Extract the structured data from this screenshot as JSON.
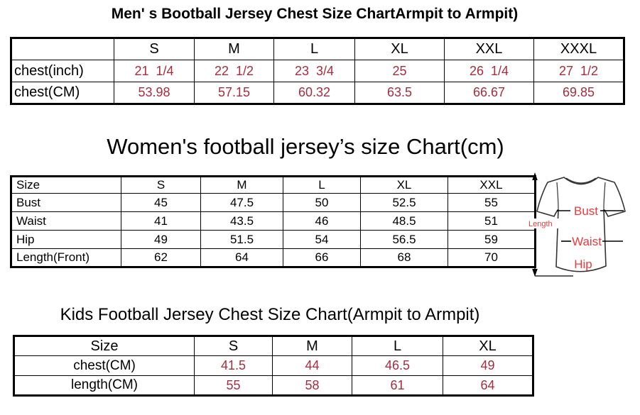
{
  "colors": {
    "table_value_red": "#A82C3E",
    "diagram_label_red": "#ED3A3A",
    "table_border": "#000000",
    "background": "#FFFFFF"
  },
  "men_chart": {
    "title": "Men' s Bootball Jersey Chest Size ChartArmpit to Armpit)",
    "columns": [
      "",
      "S",
      "M",
      "L",
      "XL",
      "XXL",
      "XXXL"
    ],
    "value_color": "#A82C3E",
    "rows": [
      {
        "label": "chest(inch)",
        "values": [
          "21  1/4",
          "22  1/2",
          "23  3/4",
          "25",
          "26  1/4",
          "27  1/2"
        ]
      },
      {
        "label": "chest(CM)",
        "values": [
          "53.98",
          "57.15",
          "60.32",
          "63.5",
          "66.67",
          "69.85"
        ]
      }
    ]
  },
  "women_chart": {
    "title": "Women's football jersey’s size Chart(cm)",
    "columns": [
      "Size",
      "S",
      "M",
      "L",
      "XL",
      "XXL"
    ],
    "value_color": "#000000",
    "rows": [
      {
        "label": "Bust",
        "values": [
          "45",
          "47.5",
          "50",
          "52.5",
          "55"
        ]
      },
      {
        "label": "Waist",
        "values": [
          "41",
          "43.5",
          "46",
          "48.5",
          "51"
        ]
      },
      {
        "label": "Hip",
        "values": [
          "49",
          "51.5",
          "54",
          "56.5",
          "59"
        ]
      },
      {
        "label": "Length(Front)",
        "values": [
          "62",
          "64",
          "66",
          "68",
          "70"
        ]
      }
    ]
  },
  "diagram": {
    "length_label": "Length",
    "bust_label": "Bust",
    "waist_label": "Waist",
    "hip_label": "Hip"
  },
  "kids_chart": {
    "title": "Kids Football Jersey Chest Size Chart(Armpit to Armpit)",
    "columns": [
      "Size",
      "S",
      "M",
      "L",
      "XL"
    ],
    "value_color": "#A82C3E",
    "rows": [
      {
        "label": "chest(CM)",
        "values": [
          "41.5",
          "44",
          "46.5",
          "49"
        ]
      },
      {
        "label": "length(CM)",
        "values": [
          "55",
          "58",
          "61",
          "64"
        ]
      }
    ]
  }
}
